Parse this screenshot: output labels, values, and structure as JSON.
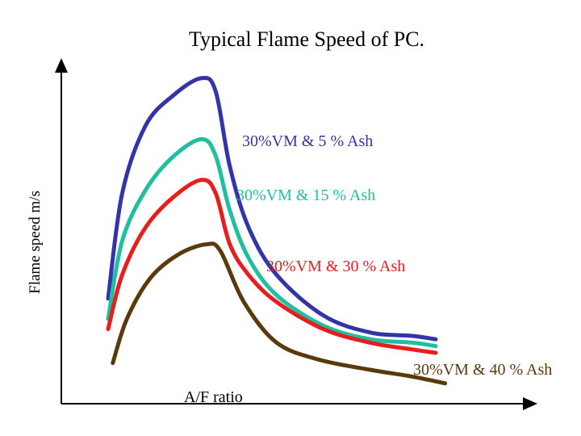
{
  "chart_data": {
    "type": "line",
    "title": "Typical Flame Speed of PC.",
    "xlabel": "A/F ratio",
    "ylabel": "Flame speed m/s",
    "xlim": [
      0,
      100
    ],
    "ylim": [
      0,
      100
    ],
    "axis_ticks": false,
    "grid": false,
    "series": [
      {
        "name": "30%VM & 5 % Ash",
        "color": "#3333aa",
        "x": [
          10,
          13,
          18,
          24,
          30,
          33,
          36,
          40,
          46,
          56,
          66,
          75,
          80
        ],
        "y": [
          31,
          62,
          82,
          91,
          96,
          92,
          70,
          52,
          38,
          26,
          21,
          20,
          19
        ]
      },
      {
        "name": "30%VM & 15 % Ash",
        "color": "#1fbf9f",
        "x": [
          10,
          13,
          18,
          24,
          30,
          33,
          36,
          40,
          46,
          56,
          66,
          75,
          80
        ],
        "y": [
          25,
          48,
          63,
          73,
          78,
          73,
          57,
          43,
          32,
          23,
          19,
          18,
          17
        ]
      },
      {
        "name": "30%VM & 30 % Ash",
        "color": "#e61e1e",
        "x": [
          10,
          13,
          18,
          24,
          30,
          33,
          36,
          40,
          46,
          56,
          66,
          75,
          80
        ],
        "y": [
          22,
          38,
          52,
          61,
          66,
          62,
          47,
          38,
          30,
          22,
          18,
          16,
          15
        ]
      },
      {
        "name": "30%VM & 40 % Ash",
        "color": "#5a3a0a",
        "x": [
          11,
          14,
          19,
          25,
          31,
          34,
          39,
          46,
          55,
          66,
          75,
          82
        ],
        "y": [
          12,
          25,
          37,
          44,
          47,
          45,
          30,
          18,
          13,
          10,
          8,
          6
        ]
      }
    ]
  }
}
